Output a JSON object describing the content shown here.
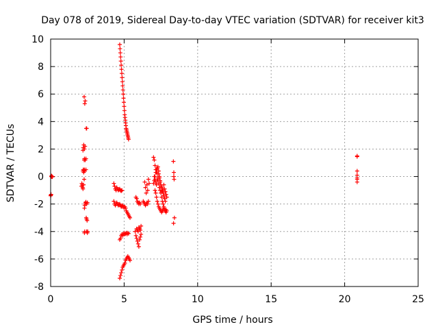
{
  "chart_data": {
    "type": "scatter",
    "title": "Day 078 of 2019, Sidereal Day-to-day VTEC variation (SDTVAR) for receiver kit3",
    "xlabel": "GPS time / hours",
    "ylabel": "SDTVAR / TECUs",
    "xlim": [
      0,
      25
    ],
    "ylim": [
      -8,
      10
    ],
    "xticks": [
      0,
      5,
      10,
      15,
      20,
      25
    ],
    "yticks": [
      -8,
      -6,
      -4,
      -2,
      0,
      2,
      4,
      6,
      8,
      10
    ],
    "grid": true,
    "marker": "+",
    "color": "#ff0000",
    "series": [
      {
        "name": "kit3",
        "x": [
          0.0,
          0.02,
          0.03,
          0.05,
          0.06,
          0.08,
          0.1,
          0.12,
          2.1,
          2.12,
          2.15,
          2.18,
          2.2,
          2.22,
          2.25,
          2.28,
          2.3,
          2.3,
          2.32,
          2.35,
          2.38,
          2.4,
          2.42,
          2.45,
          2.48,
          2.32,
          2.3,
          2.32,
          2.35,
          2.28,
          2.3,
          2.34,
          2.2,
          2.22,
          2.25,
          2.28,
          2.3,
          2.35,
          2.4,
          2.42,
          2.45,
          2.2,
          2.24,
          2.28,
          2.32,
          2.4,
          2.45,
          2.5,
          2.45,
          2.5,
          2.52,
          4.3,
          4.35,
          4.4,
          4.45,
          4.5,
          4.55,
          4.6,
          4.65,
          4.7,
          4.75,
          4.8,
          4.85,
          4.3,
          4.35,
          4.4,
          4.45,
          4.5,
          4.55,
          4.6,
          4.65,
          4.7,
          4.75,
          4.8,
          4.85,
          4.9,
          4.95,
          5.0,
          5.05,
          5.1,
          5.15,
          5.2,
          5.25,
          5.3,
          5.35,
          5.4,
          4.7,
          4.72,
          4.74,
          4.76,
          4.78,
          4.8,
          4.82,
          4.84,
          4.86,
          4.88,
          4.9,
          4.92,
          4.94,
          4.96,
          4.98,
          5.0,
          5.02,
          5.04,
          5.06,
          5.08,
          5.1,
          5.12,
          5.14,
          5.16,
          5.18,
          5.2,
          5.22,
          5.24,
          5.26,
          5.28,
          5.3,
          4.7,
          4.75,
          4.8,
          4.85,
          4.9,
          4.95,
          5.0,
          5.05,
          5.1,
          5.15,
          5.2,
          5.25,
          5.3,
          5.35,
          5.4,
          4.7,
          4.75,
          4.8,
          4.85,
          4.9,
          4.95,
          5.0,
          5.05,
          5.1,
          5.15,
          5.2,
          5.25,
          5.3,
          5.8,
          5.85,
          5.9,
          5.95,
          6.0,
          6.05,
          6.1,
          5.75,
          5.8,
          5.85,
          5.9,
          5.95,
          6.0,
          6.05,
          6.1,
          6.15,
          5.85,
          5.9,
          5.95,
          6.0,
          6.05,
          6.1,
          6.15,
          6.3,
          6.35,
          6.4,
          6.45,
          6.5,
          6.55,
          6.6,
          6.65,
          6.4,
          6.45,
          6.5,
          6.55,
          6.6,
          6.65,
          6.7,
          7.0,
          7.05,
          7.1,
          7.15,
          7.2,
          7.25,
          7.3,
          7.35,
          7.4,
          7.45,
          7.5,
          7.55,
          7.6,
          7.65,
          7.7,
          7.75,
          7.8,
          7.85,
          7.9,
          7.0,
          7.05,
          7.1,
          7.15,
          7.2,
          7.25,
          7.3,
          7.35,
          7.4,
          7.45,
          7.5,
          7.55,
          7.6,
          7.65,
          7.7,
          7.75,
          7.8,
          7.1,
          7.15,
          7.2,
          7.25,
          7.3,
          7.35,
          7.4,
          7.45,
          7.5,
          7.55,
          7.6,
          7.65,
          7.7,
          7.75,
          7.8,
          7.85,
          7.05,
          7.1,
          7.15,
          7.2,
          7.25,
          7.3,
          7.35,
          7.4,
          7.45,
          7.5,
          7.55,
          7.6,
          7.65,
          7.7,
          7.75,
          7.8,
          7.85,
          7.9,
          8.35,
          8.38,
          8.4,
          8.42,
          8.36,
          8.38,
          20.85,
          20.85,
          20.85,
          20.85,
          20.85,
          20.85,
          20.85
        ],
        "y": [
          -1.4,
          -1.35,
          -1.3,
          0.0,
          0.05,
          -0.02,
          0.0,
          -0.03,
          -0.7,
          -0.5,
          -0.6,
          -0.8,
          0.4,
          0.5,
          0.3,
          0.45,
          0.5,
          -2.3,
          -2.1,
          -2.0,
          -1.9,
          -1.85,
          -3.0,
          -3.1,
          -3.2,
          -4.0,
          -4.1,
          5.3,
          5.5,
          5.8,
          2.0,
          2.2,
          1.9,
          2.1,
          2.3,
          1.2,
          1.3,
          1.2,
          1.3,
          3.5,
          3.5,
          -0.9,
          -0.6,
          -0.2,
          0.4,
          0.5,
          -2.0,
          -1.9,
          -4.0,
          -4.1,
          -4.0,
          -0.5,
          -0.7,
          -0.9,
          -1.0,
          -0.8,
          -0.9,
          -1.0,
          -0.95,
          -0.9,
          -1.0,
          -1.05,
          -1.0,
          -1.8,
          -2.0,
          -2.1,
          -2.0,
          -1.9,
          -2.0,
          -2.1,
          -2.05,
          -2.0,
          -2.1,
          -2.2,
          -2.15,
          -2.1,
          -2.2,
          -2.3,
          -2.2,
          -2.3,
          -2.5,
          -2.6,
          -2.7,
          -2.8,
          -2.9,
          -3.0,
          9.6,
          9.3,
          9.0,
          8.7,
          8.4,
          8.1,
          7.8,
          7.5,
          7.2,
          6.9,
          6.6,
          6.3,
          6.0,
          5.7,
          5.4,
          5.1,
          4.8,
          4.5,
          4.3,
          4.1,
          3.9,
          3.7,
          3.5,
          3.4,
          3.3,
          3.2,
          3.1,
          3.0,
          2.9,
          2.8,
          2.7,
          -7.4,
          -7.2,
          -7.0,
          -6.8,
          -6.6,
          -6.5,
          -6.4,
          -6.3,
          -6.1,
          -6.0,
          -5.9,
          -5.8,
          -5.9,
          -6.0,
          -6.1,
          -4.6,
          -4.5,
          -4.3,
          -4.2,
          -4.3,
          -4.2,
          -4.1,
          -4.2,
          -4.15,
          -4.1,
          -4.2,
          -4.1,
          -4.15,
          -1.5,
          -1.6,
          -1.8,
          -1.9,
          -2.0,
          -1.9,
          -2.0,
          -4.0,
          -4.3,
          -4.5,
          -4.7,
          -4.9,
          -5.1,
          -4.6,
          -4.4,
          -4.2,
          -3.8,
          -3.9,
          -4.0,
          -3.7,
          -3.8,
          -3.9,
          -3.6,
          -1.8,
          -1.9,
          -2.0,
          -2.1,
          -2.0,
          -1.9,
          -2.0,
          -1.8,
          -0.4,
          -0.8,
          -1.2,
          -0.6,
          -1.0,
          -0.2,
          -0.5,
          -0.5,
          -0.3,
          0.0,
          0.3,
          0.5,
          0.2,
          -0.2,
          -0.5,
          -0.8,
          -1.0,
          -1.2,
          -1.5,
          -1.8,
          -2.0,
          -2.2,
          -2.4,
          -2.5,
          -2.6,
          -2.5,
          1.4,
          1.2,
          0.8,
          0.5,
          0.3,
          0.6,
          0.7,
          0.4,
          0.0,
          -0.3,
          -0.6,
          -0.8,
          -1.0,
          -1.2,
          -1.4,
          -1.6,
          -1.8,
          -1.0,
          -1.2,
          -1.5,
          -1.8,
          -2.0,
          -2.2,
          -2.3,
          -2.4,
          -2.5,
          -2.6,
          -2.5,
          -2.4,
          -2.3,
          -2.4,
          -2.5,
          -2.4,
          0.0,
          -0.2,
          -0.4,
          -0.6,
          -0.3,
          -0.1,
          0.2,
          -0.1,
          -0.4,
          -0.7,
          -1.0,
          -1.1,
          -0.9,
          -0.6,
          -0.9,
          -1.1,
          -1.3,
          -1.5,
          1.1,
          0.3,
          -0.2,
          -3.0,
          -3.4,
          0.0,
          1.5,
          1.45,
          0.4,
          0.1,
          -0.1,
          -0.2,
          -0.4
        ]
      }
    ]
  }
}
